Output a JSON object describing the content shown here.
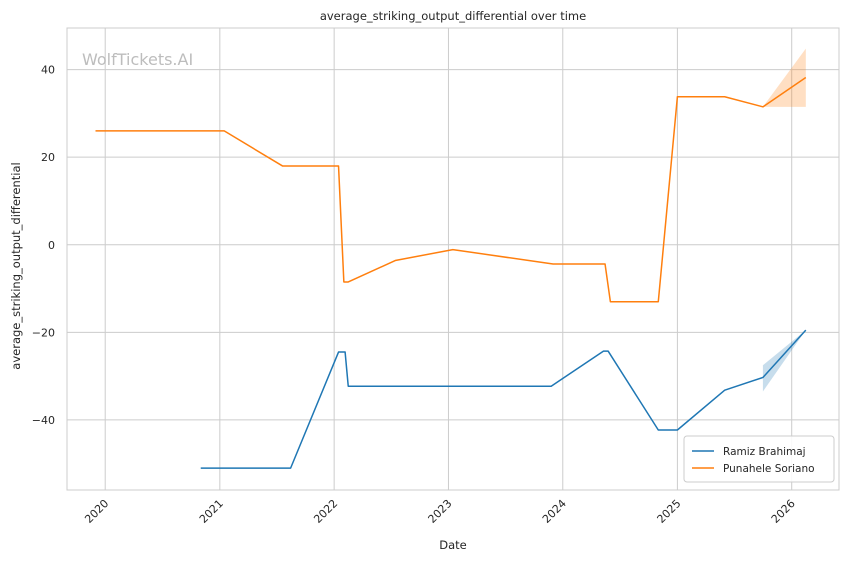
{
  "chart_data": {
    "type": "line",
    "title": "average_striking_output_differential over time",
    "xlabel": "Date",
    "ylabel": "average_striking_output_differential",
    "watermark": "WolfTickets.AI",
    "x_ticks": [
      "2020",
      "2021",
      "2022",
      "2023",
      "2024",
      "2025",
      "2026"
    ],
    "y_ticks": [
      -40,
      -20,
      0,
      20,
      40
    ],
    "xlim": [
      "2019-09-01",
      "2026-06-01"
    ],
    "ylim": [
      -56,
      49.5
    ],
    "grid": true,
    "legend_position": "lower-right",
    "series": [
      {
        "name": "Ramiz Brahimaj",
        "color": "#1f77b4",
        "points": [
          [
            "2020-11-01",
            -51
          ],
          [
            "2021-08-15",
            -51
          ],
          [
            "2022-01-15",
            -24.5
          ],
          [
            "2022-02-05",
            -24.5
          ],
          [
            "2022-02-15",
            -32.3
          ],
          [
            "2023-11-25",
            -32.3
          ],
          [
            "2024-05-10",
            -24.3
          ],
          [
            "2024-05-25",
            -24.3
          ],
          [
            "2024-11-01",
            -42.3
          ],
          [
            "2025-01-01",
            -42.3
          ],
          [
            "2025-06-01",
            -33.2
          ],
          [
            "2025-10-01",
            -30.3
          ],
          [
            "2026-02-15",
            -19.5
          ]
        ],
        "band": [
          [
            "2025-10-01",
            -33.5,
            -27.5
          ],
          [
            "2026-02-15",
            -19.5,
            -19.5
          ]
        ]
      },
      {
        "name": "Punahele Soriano",
        "color": "#ff7f0e",
        "points": [
          [
            "2019-12-01",
            26
          ],
          [
            "2021-01-15",
            26
          ],
          [
            "2021-07-20",
            18
          ],
          [
            "2022-01-15",
            18
          ],
          [
            "2022-02-01",
            -8.5
          ],
          [
            "2022-02-15",
            -8.5
          ],
          [
            "2022-07-15",
            -3.6
          ],
          [
            "2023-01-15",
            -1.1
          ],
          [
            "2023-12-01",
            -4.4
          ],
          [
            "2024-05-15",
            -4.4
          ],
          [
            "2024-06-01",
            -13
          ],
          [
            "2024-11-01",
            -13
          ],
          [
            "2025-01-01",
            33.8
          ],
          [
            "2025-06-01",
            33.8
          ],
          [
            "2025-10-01",
            31.5
          ],
          [
            "2026-02-15",
            38.2
          ]
        ],
        "band": [
          [
            "2025-10-01",
            31.5,
            31.5
          ],
          [
            "2026-02-15",
            31.5,
            44.8
          ]
        ]
      }
    ]
  }
}
